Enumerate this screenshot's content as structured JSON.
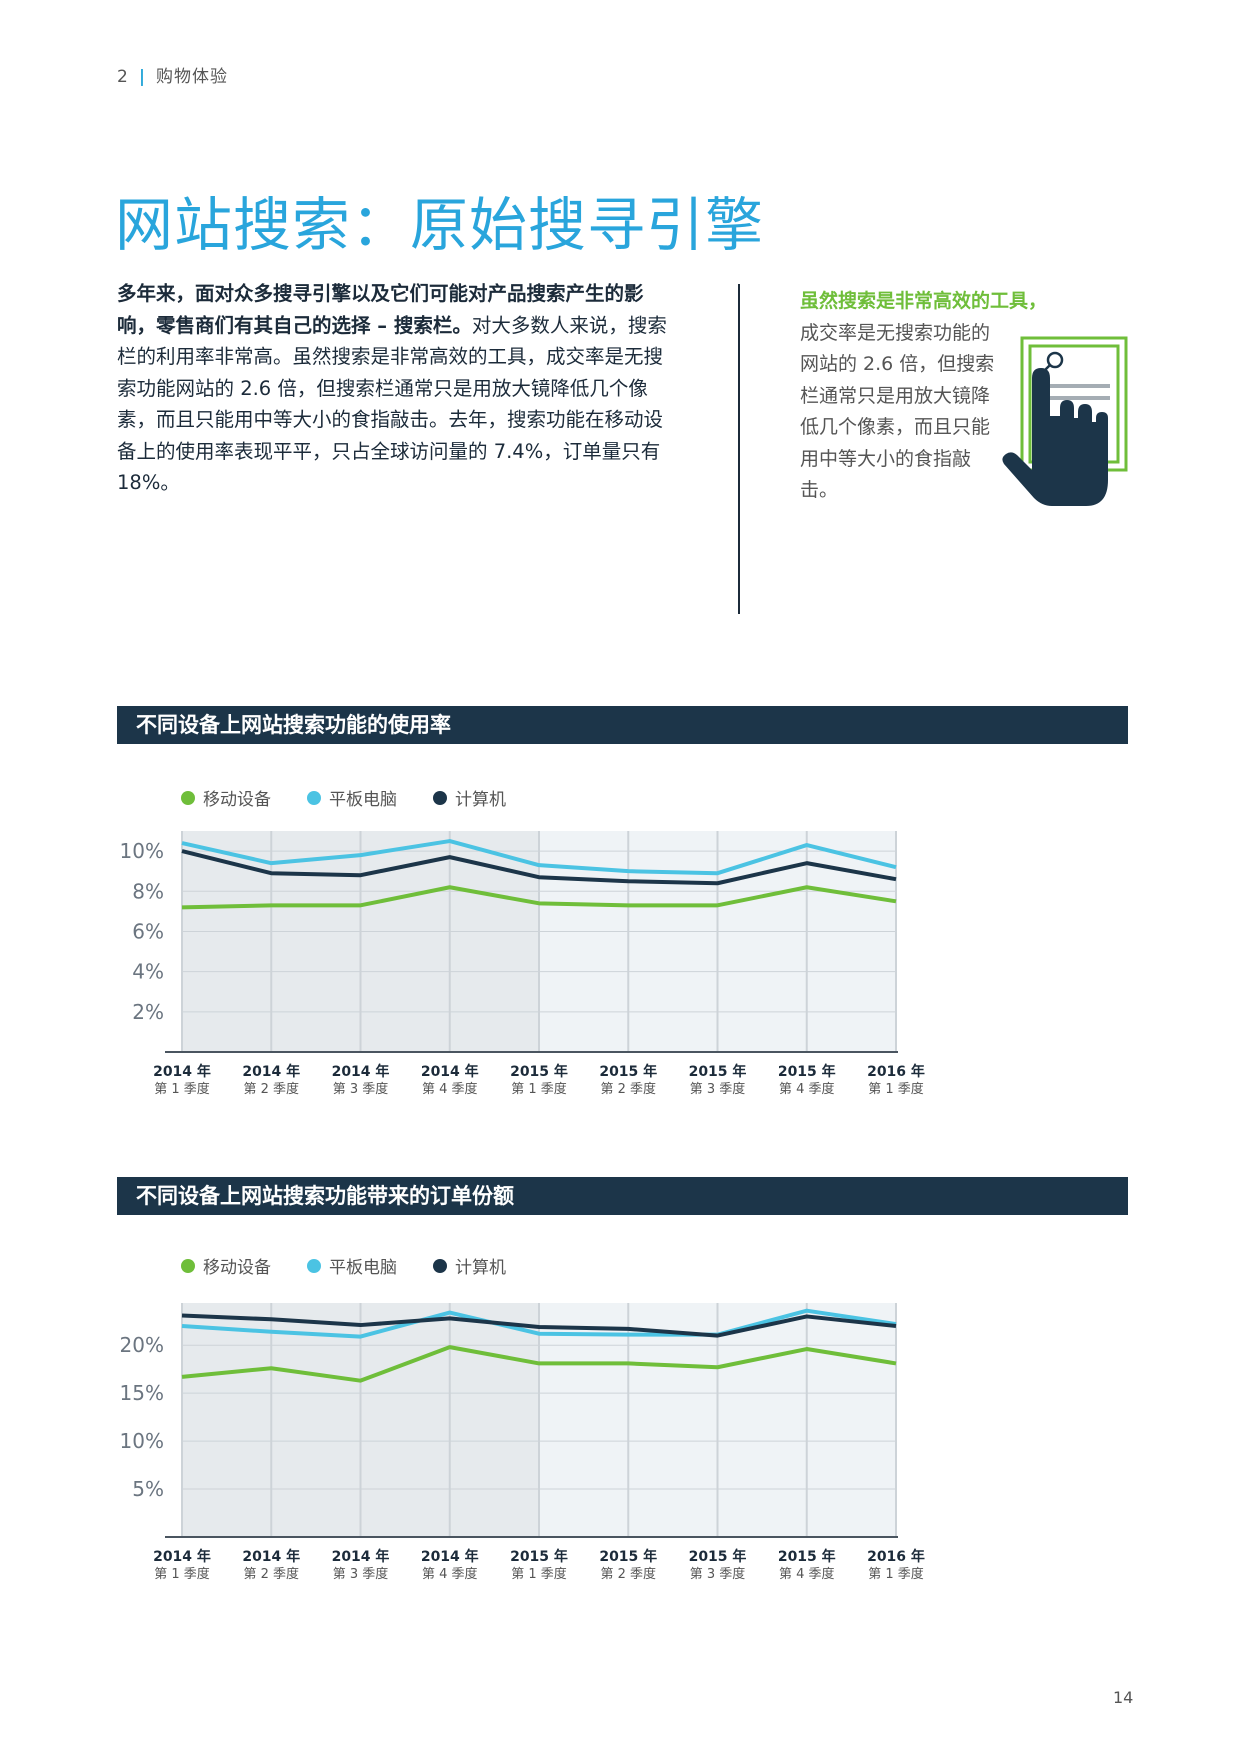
{
  "header": {
    "page": "2",
    "section": "购物体验"
  },
  "title": "网站搜索：原始搜寻引擎",
  "body": {
    "bold": "多年来，面对众多搜寻引擎以及它们可能对产品搜索产生的影响，零售商们有其自己的选择 – 搜索栏。",
    "text": "对大多数人来说，搜索栏的利用率非常高。虽然搜索是非常高效的工具，成交率是无搜索功能网站的 2.6 倍，但搜索栏通常只是用放大镜降低几个像素，而且只能用中等大小的食指敲击。去年，搜索功能在移动设备上的使用率表现平平，只占全球访问量的 7.4%，订单量只有 18%。"
  },
  "callout": {
    "highlight": "虽然搜索是非常高效的工具，",
    "text": "成交率是无搜索功能的网站的 2.6 倍，但搜索栏通常只是用放大镜降低几个像素，而且只能用中等大小的食指敲击。"
  },
  "colors": {
    "mobile": "#6fbe3a",
    "tablet": "#4bc3e3",
    "computer": "#1c3549",
    "title": "#29a5dc",
    "bar": "#1c3549"
  },
  "icons": [
    "hand-pointer-icon",
    "magnifier-icon"
  ],
  "legend": {
    "mobile": "移动设备",
    "tablet": "平板电脑",
    "computer": "计算机"
  },
  "chart_data": [
    {
      "type": "line",
      "title": "不同设备上网站搜索功能的使用率",
      "categories": [
        "2014 年|第 1 季度",
        "2014 年|第 2 季度",
        "2014 年|第 3 季度",
        "2014 年|第 4 季度",
        "2015 年|第 1 季度",
        "2015 年|第 2 季度",
        "2015 年|第 3 季度",
        "2015 年|第 4 季度",
        "2016 年|第 1 季度"
      ],
      "y_ticks": [
        "10%",
        "8%",
        "6%",
        "4%",
        "2%"
      ],
      "y_tick_values": [
        10,
        8,
        6,
        4,
        2
      ],
      "ylim": [
        0,
        11
      ],
      "series": [
        {
          "name": "移动设备",
          "values": [
            7.2,
            7.3,
            7.3,
            8.2,
            7.4,
            7.3,
            7.3,
            8.2,
            7.5
          ]
        },
        {
          "name": "平板电脑",
          "values": [
            10.4,
            9.4,
            9.8,
            10.5,
            9.3,
            9.0,
            8.9,
            10.3,
            9.2
          ]
        },
        {
          "name": "计算机",
          "values": [
            10.0,
            8.9,
            8.8,
            9.7,
            8.7,
            8.5,
            8.4,
            9.4,
            8.6
          ]
        }
      ]
    },
    {
      "type": "line",
      "title": "不同设备上网站搜索功能带来的订单份额",
      "categories": [
        "2014 年|第 1 季度",
        "2014 年|第 2 季度",
        "2014 年|第 3 季度",
        "2014 年|第 4 季度",
        "2015 年|第 1 季度",
        "2015 年|第 2 季度",
        "2015 年|第 3 季度",
        "2015 年|第 4 季度",
        "2016 年|第 1 季度"
      ],
      "y_ticks": [
        "20%",
        "15%",
        "10%",
        "5%"
      ],
      "y_tick_values": [
        20,
        15,
        10,
        5
      ],
      "ylim": [
        0,
        24.4
      ],
      "series": [
        {
          "name": "移动设备",
          "values": [
            16.7,
            17.6,
            16.3,
            19.8,
            18.1,
            18.1,
            17.7,
            19.6,
            18.1
          ]
        },
        {
          "name": "平板电脑",
          "values": [
            22.0,
            21.4,
            20.9,
            23.4,
            21.2,
            21.1,
            21.1,
            23.6,
            22.2
          ]
        },
        {
          "name": "计算机",
          "values": [
            23.1,
            22.7,
            22.1,
            22.8,
            21.9,
            21.7,
            21.0,
            23.0,
            22.0
          ]
        }
      ]
    }
  ],
  "page_number": "14"
}
